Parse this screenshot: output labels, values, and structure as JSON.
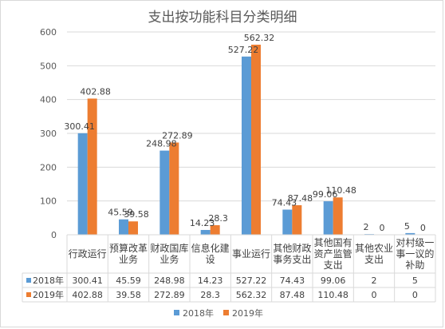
{
  "chart_data": {
    "type": "bar",
    "title": "支出按功能科目分类明细",
    "categories": [
      [
        "行政运行"
      ],
      [
        "预算改革",
        "业务"
      ],
      [
        "财政国库",
        "业务"
      ],
      [
        "信息化建",
        "设"
      ],
      [
        "事业运行"
      ],
      [
        "其他财政",
        "事务支出"
      ],
      [
        "其他国有",
        "资产监管",
        "支出"
      ],
      [
        "其他农业",
        "支出"
      ],
      [
        "对村级一",
        "事一议的",
        "补助"
      ]
    ],
    "series": [
      {
        "name": "2018年",
        "color": "#5B9BD5",
        "values": [
          300.41,
          45.59,
          248.98,
          14.23,
          527.22,
          74.43,
          99.06,
          2,
          5
        ],
        "labels": [
          "300.41",
          "45.59",
          "248.98",
          "14.23",
          "527.22",
          "74.43",
          "99.06",
          "2",
          "5"
        ]
      },
      {
        "name": "2019年",
        "color": "#ED7D31",
        "values": [
          402.88,
          39.58,
          272.89,
          28.3,
          562.32,
          87.48,
          110.48,
          0,
          0
        ],
        "labels": [
          "402.88",
          "39.58",
          "272.89",
          "28.3",
          "562.32",
          "87.48",
          "110.48",
          "0",
          "0"
        ]
      }
    ],
    "yticks": [
      "0",
      "100",
      "200",
      "300",
      "400",
      "500",
      "600"
    ],
    "ylim": [
      0,
      600
    ],
    "grid": true,
    "legend": "bottom",
    "data_table": true
  }
}
